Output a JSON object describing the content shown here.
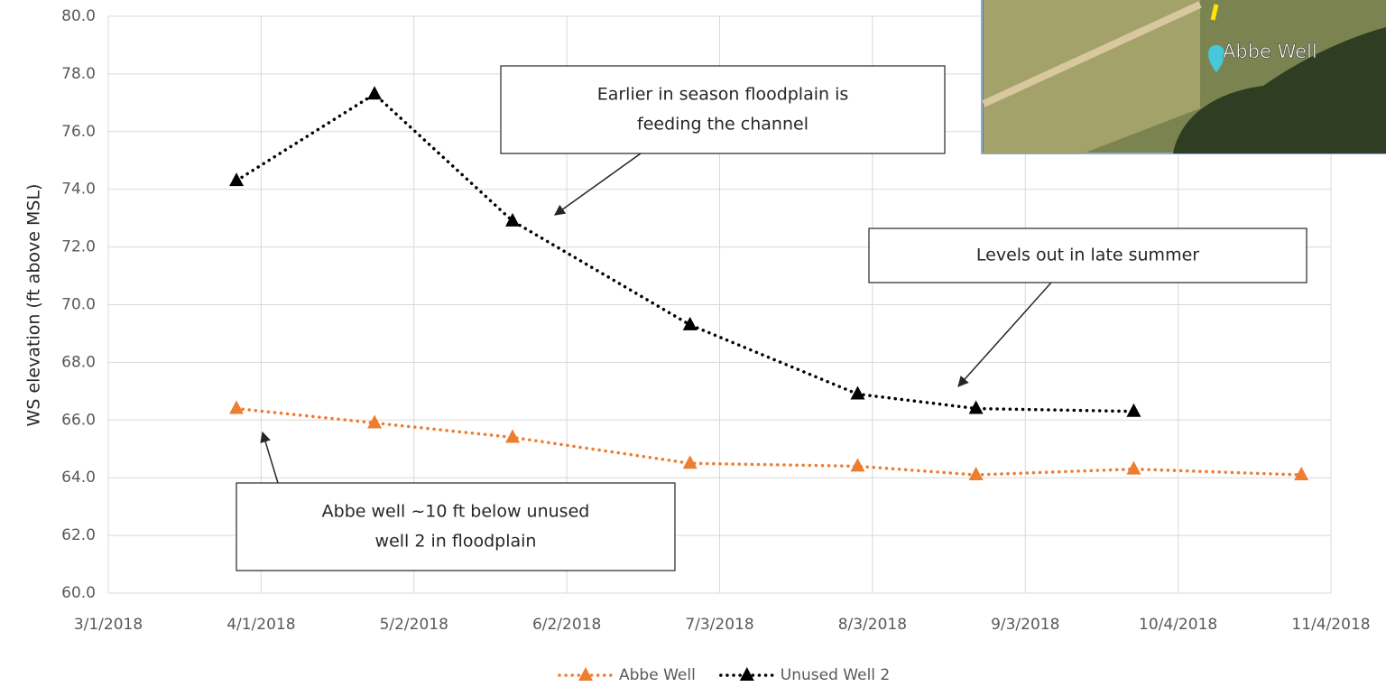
{
  "chart_data": {
    "type": "line",
    "y_label": "WS elevation (ft above MSL)",
    "x": [
      "3/27/2018",
      "4/24/2018",
      "5/22/2018",
      "6/27/2018",
      "7/31/2018",
      "8/24/2018",
      "9/25/2018",
      "10/29/2018"
    ],
    "series": [
      {
        "name": "Abbe Well",
        "color": "#ed7d31",
        "values": [
          66.4,
          65.9,
          65.4,
          64.5,
          64.4,
          64.1,
          64.3,
          64.1
        ]
      },
      {
        "name": "Unused Well 2",
        "color": "#000000",
        "values": [
          74.3,
          77.3,
          72.9,
          69.3,
          66.9,
          66.4,
          66.3,
          null
        ]
      }
    ],
    "xlim": [
      "3/1/2018",
      "11/4/2018"
    ],
    "xticks": [
      "3/1/2018",
      "4/1/2018",
      "5/2/2018",
      "6/2/2018",
      "7/3/2018",
      "8/3/2018",
      "9/3/2018",
      "10/4/2018",
      "11/4/2018"
    ],
    "ylim": [
      60,
      80
    ],
    "yticks": [
      {
        "value": 60,
        "label": "60.0"
      },
      {
        "value": 62,
        "label": "62.0"
      },
      {
        "value": 64,
        "label": "64.0"
      },
      {
        "value": 66,
        "label": "66.0"
      },
      {
        "value": 68,
        "label": "68.0"
      },
      {
        "value": 70,
        "label": "70.0"
      },
      {
        "value": 72,
        "label": "72.0"
      },
      {
        "value": 74,
        "label": "74.0"
      },
      {
        "value": 76,
        "label": "76.0"
      },
      {
        "value": 78,
        "label": "78.0"
      },
      {
        "value": 80,
        "label": "80.0"
      }
    ],
    "grid": true,
    "legend": "bottom",
    "annotations": [
      {
        "lines": [
          "Earlier in season floodplain is",
          "feeding the channel"
        ]
      },
      {
        "lines": [
          "Levels out in late summer"
        ]
      },
      {
        "lines": [
          "Abbe well ~10 ft below unused",
          "well 2 in floodplain"
        ]
      }
    ],
    "inset_label": "Abbe Well"
  }
}
